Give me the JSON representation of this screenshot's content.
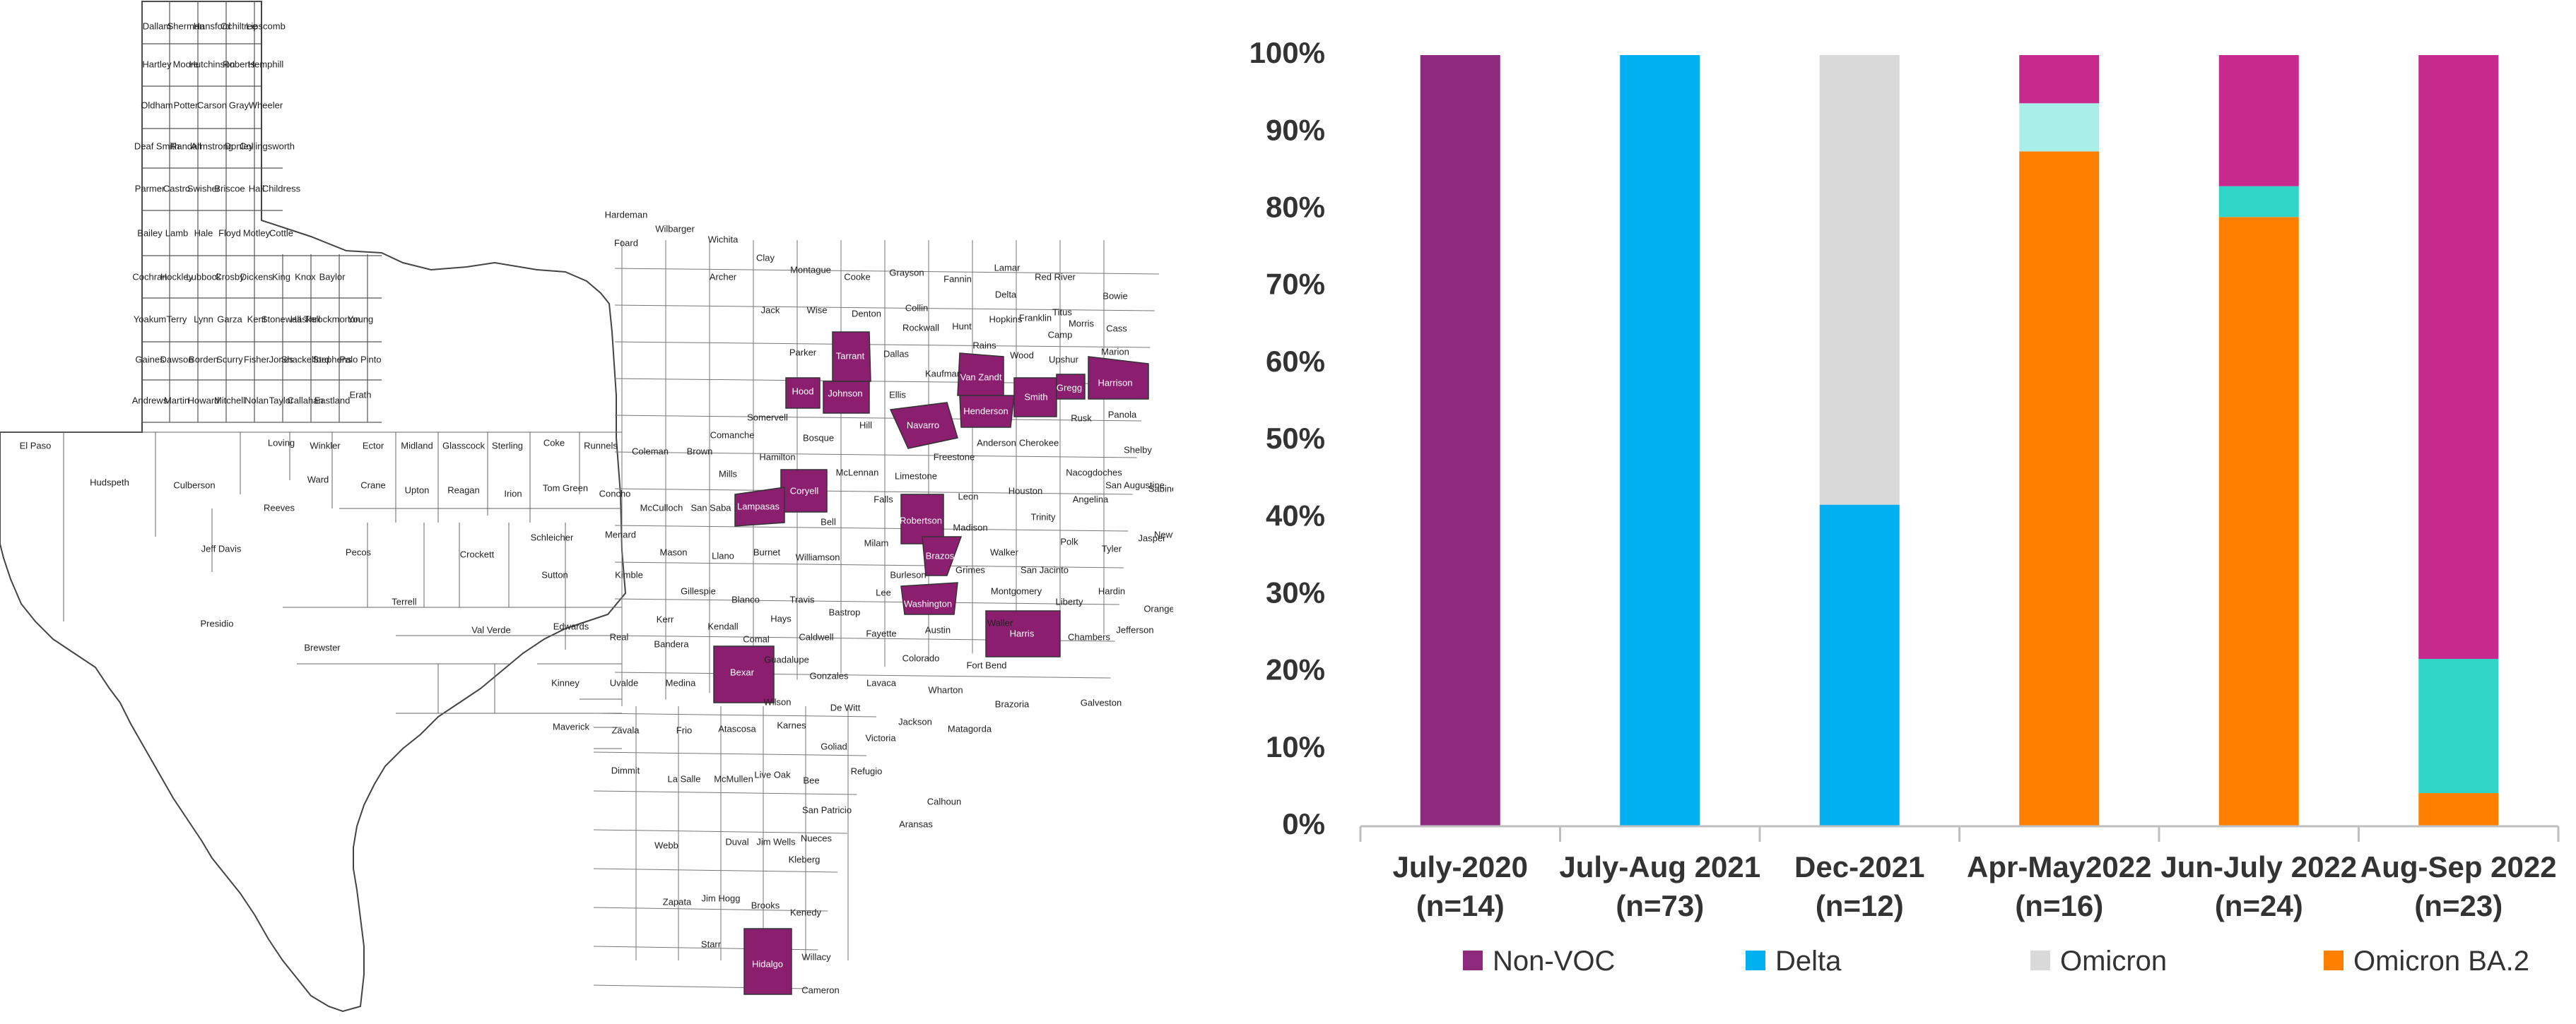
{
  "map": {
    "counties": [
      "Dallam",
      "Sherman",
      "Hansford",
      "Ochiltree",
      "Lipscomb",
      "Hartley",
      "Moore",
      "Hutchinson",
      "Roberts",
      "Hemphill",
      "Oldham",
      "Potter",
      "Carson",
      "Gray",
      "Wheeler",
      "Deaf Smith",
      "Randall",
      "Armstrong",
      "Donley",
      "Collingsworth",
      "Parmer",
      "Castro",
      "Swisher",
      "Briscoe",
      "Hall",
      "Childress",
      "Bailey",
      "Lamb",
      "Hale",
      "Floyd",
      "Motley",
      "Cottle",
      "Cochran",
      "Hockley",
      "Lubbock",
      "Crosby",
      "Dickens",
      "King",
      "Knox",
      "Baylor",
      "Yoakum",
      "Terry",
      "Lynn",
      "Garza",
      "Kent",
      "Stonewall",
      "Haskell",
      "Throckmorton",
      "Young",
      "Gaines",
      "Dawson",
      "Borden",
      "Scurry",
      "Fisher",
      "Jones",
      "Shackelford",
      "Stephens",
      "Palo Pinto",
      "Andrews",
      "Martin",
      "Howard",
      "Mitchell",
      "Nolan",
      "Taylor",
      "Callahan",
      "Eastland",
      "Erath",
      "El Paso",
      "Hudspeth",
      "Culberson",
      "Loving",
      "Winkler",
      "Ector",
      "Midland",
      "Glasscock",
      "Sterling",
      "Coke",
      "Runnels",
      "Coleman",
      "Brown",
      "Ward",
      "Crane",
      "Upton",
      "Reagan",
      "Irion",
      "Tom Green",
      "Concho",
      "McCulloch",
      "San Saba",
      "Mills",
      "Comanche",
      "Hamilton",
      "Reeves",
      "Jeff Davis",
      "Pecos",
      "Crockett",
      "Schleicher",
      "Menard",
      "Mason",
      "Llano",
      "Burnet",
      "Bell",
      "Presidio",
      "Brewster",
      "Terrell",
      "Val Verde",
      "Sutton",
      "Kimble",
      "Gillespie",
      "Blanco",
      "Edwards",
      "Real",
      "Kerr",
      "Kendall",
      "Comal",
      "Hays",
      "Travis",
      "Williamson",
      "Milam",
      "Kinney",
      "Uvalde",
      "Bandera",
      "Medina",
      "Guadalupe",
      "Caldwell",
      "Bastrop",
      "Lee",
      "Burleson",
      "Maverick",
      "Zavala",
      "Frio",
      "Atascosa",
      "Wilson",
      "Gonzales",
      "Fayette",
      "Austin",
      "Waller",
      "Dimmit",
      "La Salle",
      "McMullen",
      "Live Oak",
      "Karnes",
      "De Witt",
      "Lavaca",
      "Colorado",
      "Wharton",
      "Webb",
      "Duval",
      "Jim Wells",
      "Bee",
      "Goliad",
      "Victoria",
      "Jackson",
      "Matagorda",
      "Brazoria",
      "Zapata",
      "Jim Hogg",
      "Brooks",
      "Kenedy",
      "Kleberg",
      "Nueces",
      "San Patricio",
      "Refugio",
      "Calhoun",
      "Aransas",
      "Starr",
      "Willacy",
      "Cameron",
      "Hardeman",
      "Foard",
      "Wilbarger",
      "Wichita",
      "Archer",
      "Clay",
      "Montague",
      "Cooke",
      "Grayson",
      "Fannin",
      "Lamar",
      "Red River",
      "Bowie",
      "Jack",
      "Wise",
      "Denton",
      "Collin",
      "Hunt",
      "Delta",
      "Hopkins",
      "Franklin",
      "Titus",
      "Morris",
      "Cass",
      "Camp",
      "Parker",
      "Dallas",
      "Rockwall",
      "Rains",
      "Wood",
      "Upshur",
      "Marion",
      "Somervell",
      "Bosque",
      "Hill",
      "Ellis",
      "Kaufman",
      "Panola",
      "Rusk",
      "Cherokee",
      "Anderson",
      "McLennan",
      "Limestone",
      "Freestone",
      "Leon",
      "Houston",
      "Nacogdoches",
      "Shelby",
      "San Augustine",
      "Sabine",
      "Falls",
      "Madison",
      "Walker",
      "Trinity",
      "Angelina",
      "Polk",
      "Tyler",
      "Jasper",
      "Newton",
      "Grimes",
      "San Jacinto",
      "Montgomery",
      "Liberty",
      "Hardin",
      "Orange",
      "Jefferson",
      "Chambers",
      "Fort Bend",
      "Galveston",
      "Coryell",
      "Lampasas",
      "Bexar",
      "Hood",
      "Johnson",
      "Tarrant",
      "Van Zandt",
      "Smith",
      "Gregg",
      "Harrison",
      "Henderson",
      "Navarro",
      "Robertson",
      "Brazos",
      "Washington",
      "Harris",
      "Hidalgo"
    ],
    "highlighted": [
      "Tarrant",
      "Hood",
      "Johnson",
      "Van Zandt",
      "Smith",
      "Gregg",
      "Harrison",
      "Henderson",
      "Navarro",
      "Coryell",
      "Lampasas",
      "Robertson",
      "Brazos",
      "Washington",
      "Harris",
      "Bexar",
      "Hidalgo"
    ],
    "highlight_color": "#8b1e6e"
  },
  "chart_data": {
    "type": "bar",
    "stacked": true,
    "categories": [
      [
        "July-2020",
        "(n=14)"
      ],
      [
        "July-Aug 2021",
        "(n=73)"
      ],
      [
        "Dec-2021",
        "(n=12)"
      ],
      [
        "Apr-May2022",
        "(n=16)"
      ],
      [
        "Jun-July 2022",
        "(n=24)"
      ],
      [
        "Aug-Sep 2022",
        "(n=23)"
      ]
    ],
    "series": [
      {
        "name": "Omicron BA.2",
        "color": "#ff8000",
        "values": [
          0,
          0,
          0,
          87.5,
          79,
          4.3
        ]
      },
      {
        "name": "",
        "color": "#30d5c8",
        "values": [
          0,
          0,
          0,
          0,
          4,
          17.4
        ]
      },
      {
        "name": "",
        "color": "#aaeeea",
        "values": [
          0,
          0,
          0,
          6.25,
          0,
          0
        ]
      },
      {
        "name": "Delta",
        "color": "#00b0f0",
        "values": [
          0,
          100,
          41.7,
          0,
          0,
          0
        ]
      },
      {
        "name": "Omicron",
        "color": "#d9d9d9",
        "values": [
          0,
          0,
          58.3,
          0,
          0,
          0
        ]
      },
      {
        "name": "Non-VOC",
        "color": "#8e2a7e",
        "values": [
          100,
          0,
          0,
          0,
          0,
          0
        ]
      },
      {
        "name": "",
        "color": "#c72a8d",
        "values": [
          0,
          0,
          0,
          6.25,
          17,
          78.3
        ]
      }
    ],
    "legend": [
      {
        "name": "Non-VOC",
        "color": "#8e2a7e"
      },
      {
        "name": "Delta",
        "color": "#00b0f0"
      },
      {
        "name": "Omicron",
        "color": "#d9d9d9"
      },
      {
        "name": "Omicron BA.2",
        "color": "#ff8000"
      }
    ],
    "ylim": [
      0,
      100
    ],
    "yticks": [
      "0%",
      "10%",
      "20%",
      "30%",
      "40%",
      "50%",
      "60%",
      "70%",
      "80%",
      "90%",
      "100%"
    ],
    "legend_position": "bottom",
    "grid": false
  }
}
